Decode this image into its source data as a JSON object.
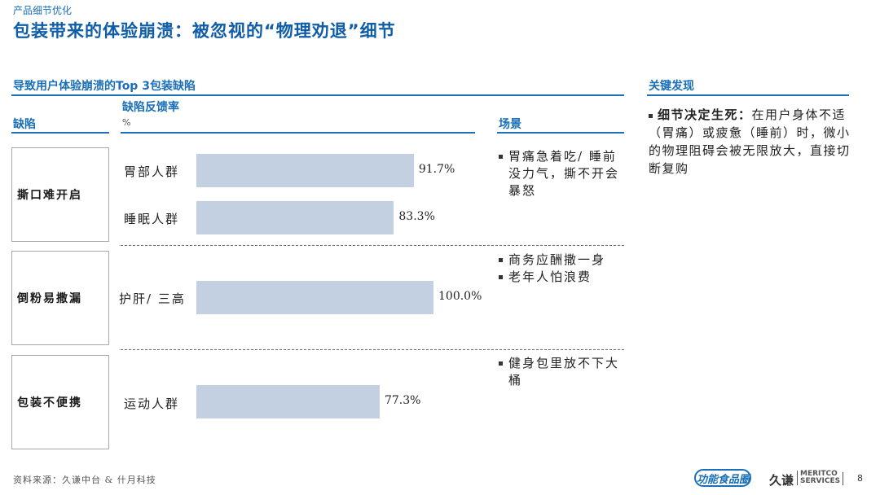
{
  "header": {
    "section_tag": "产品细节优化",
    "title": "包装带来的体验崩溃：被忽视的“物理劝退”细节"
  },
  "left_panel": {
    "subtitle": "导致用户体验崩溃的Top 3包装缺陷",
    "col_defect": "缺陷",
    "col_rate": "缺陷反馈率",
    "col_rate_unit": "%",
    "col_scene": "场景"
  },
  "chart_data": {
    "type": "bar",
    "orientation": "horizontal",
    "unit": "%",
    "xlim": [
      0,
      100
    ],
    "categories": [
      "胃部人群",
      "睡眠人群",
      "护肝/ 三高",
      "运动人群"
    ],
    "values": [
      91.7,
      83.3,
      100.0,
      77.3
    ],
    "value_labels": [
      "91.7%",
      "83.3%",
      "100.0%",
      "77.3%"
    ],
    "bar_color": "#c2d0e2",
    "groups": [
      {
        "defect": "撕口难开启",
        "categories": [
          "胃部人群",
          "睡眠人群"
        ]
      },
      {
        "defect": "倒粉易撒漏",
        "categories": [
          "护肝/ 三高"
        ]
      },
      {
        "defect": "包装不便携",
        "categories": [
          "运动人群"
        ]
      }
    ]
  },
  "defects": [
    "撕口难开启",
    "倒粉易撒漏",
    "包装不便携"
  ],
  "scenes": [
    [
      "胃痛急着吃/ 睡前没力气，撕不开会暴怒"
    ],
    [
      "商务应酬撒一身",
      "老年人怕浪费"
    ],
    [
      "健身包里放不下大桶"
    ]
  ],
  "findings": {
    "title": "关键发现",
    "lead": "细节决定生死：",
    "text": "在用户身体不适（胃痛）或疲惫（睡前）时，微小的物理阻碍会被无限放大，直接切断复购"
  },
  "footer": {
    "source": "资料来源：久谦中台 & 什月科技",
    "logo_food": "功能食品圈",
    "logo_jq": "久谦",
    "logo_meritco": "MERITCO",
    "logo_services": "SERVICES",
    "page_number": "8"
  }
}
